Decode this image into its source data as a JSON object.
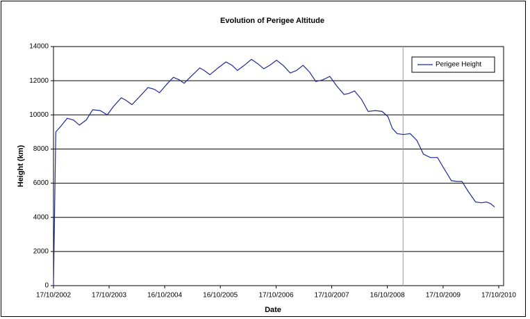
{
  "chart_data": {
    "type": "line",
    "title": "Evolution of Perigee Altitude",
    "x_label": "Date",
    "y_label": "Height  (km)",
    "x": [
      "17/10/2002",
      "01/11/2002",
      "01/12/2002",
      "15/01/2003",
      "25/02/2003",
      "05/04/2003",
      "20/05/2003",
      "01/07/2003",
      "20/08/2003",
      "05/10/2003",
      "15/11/2003",
      "05/01/2004",
      "05/02/2004",
      "15/03/2004",
      "08/05/2004",
      "28/06/2004",
      "08/08/2004",
      "12/09/2004",
      "30/10/2004",
      "12/12/2004",
      "20/01/2005",
      "20/02/2005",
      "12/04/2005",
      "03/06/2005",
      "02/07/2005",
      "08/08/2005",
      "01/10/2005",
      "22/11/2005",
      "01/01/2006",
      "05/02/2006",
      "22/03/2006",
      "08/05/2006",
      "18/06/2006",
      "28/07/2006",
      "05/09/2006",
      "20/10/2006",
      "02/12/2006",
      "18/01/2007",
      "28/02/2007",
      "12/04/2007",
      "25/05/2007",
      "05/07/2007",
      "18/08/2007",
      "05/10/2007",
      "18/11/2007",
      "05/01/2008",
      "05/02/2008",
      "15/03/2008",
      "30/04/2008",
      "12/06/2008",
      "30/07/2008",
      "12/09/2008",
      "20/10/2008",
      "18/11/2008",
      "20/12/2008",
      "30/01/2009",
      "15/03/2009",
      "28/04/2009",
      "10/06/2009",
      "25/07/2009",
      "10/09/2009",
      "20/10/2009",
      "10/12/2009",
      "15/01/2010",
      "18/02/2010",
      "01/04/2010",
      "18/05/2010",
      "25/06/2010",
      "28/07/2010",
      "25/08/2010",
      "20/09/2010"
    ],
    "series": [
      {
        "name": "Perigee Height",
        "color": "#1f2a8c",
        "values": [
          0,
          9000,
          9300,
          9800,
          9700,
          9400,
          9700,
          10300,
          10250,
          10000,
          10500,
          11000,
          10850,
          10600,
          11100,
          11600,
          11500,
          11300,
          11800,
          12200,
          12050,
          11850,
          12300,
          12750,
          12600,
          12350,
          12750,
          13100,
          12900,
          12600,
          12900,
          13250,
          13000,
          12700,
          12900,
          13200,
          12900,
          12450,
          12600,
          12900,
          12500,
          11950,
          12050,
          12250,
          11700,
          11200,
          11250,
          11400,
          10900,
          10200,
          10250,
          10200,
          9900,
          9200,
          8900,
          8850,
          8900,
          8500,
          7700,
          7500,
          7500,
          6900,
          6150,
          6100,
          6100,
          5500,
          4900,
          4850,
          4900,
          4800,
          4600
        ]
      }
    ],
    "xlim": [
      "17/10/2002",
      "18/11/2010"
    ],
    "xticks": [
      "17/10/2002",
      "17/10/2003",
      "16/10/2004",
      "16/10/2005",
      "17/10/2006",
      "17/10/2007",
      "16/10/2008",
      "17/10/2009",
      "17/10/2010"
    ],
    "ylim": [
      0,
      14000
    ],
    "yticks": [
      0,
      2000,
      4000,
      6000,
      8000,
      10000,
      12000,
      14000
    ],
    "grid": true,
    "vline": "27/01/2009",
    "legend": "upper right"
  }
}
